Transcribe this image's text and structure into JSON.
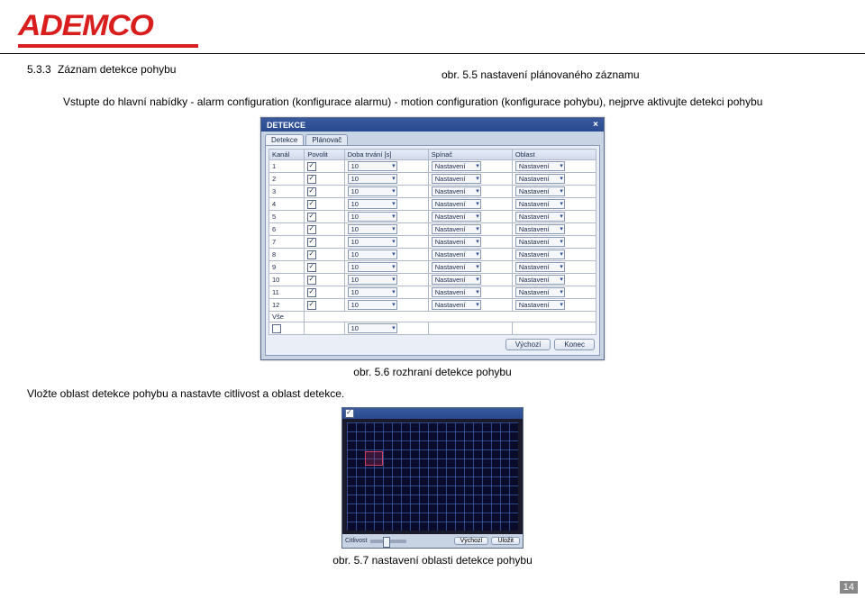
{
  "logo": "ADEMCO",
  "row1": {
    "section_num": "5.3.3",
    "section_title": "Záznam detekce pohybu",
    "caption55": "obr. 5.5 nastavení plánovaného záznamu"
  },
  "para1": "Vstupte do hlavní nabídky - alarm configuration (konfigurace alarmu) - motion configuration (konfigurace pohybu), nejprve aktivujte detekci pohybu",
  "detekce": {
    "title": "DETEKCE",
    "tabs": [
      "Detekce",
      "Plánovač"
    ],
    "columns": [
      "Kanál",
      "Povolit",
      "Doba trvání [s]",
      "Spínač",
      "Oblast"
    ],
    "rows": [
      {
        "k": "1",
        "p": true,
        "d": "10",
        "s": "Nastavení",
        "o": "Nastavení"
      },
      {
        "k": "2",
        "p": true,
        "d": "10",
        "s": "Nastavení",
        "o": "Nastavení"
      },
      {
        "k": "3",
        "p": true,
        "d": "10",
        "s": "Nastavení",
        "o": "Nastavení"
      },
      {
        "k": "4",
        "p": true,
        "d": "10",
        "s": "Nastavení",
        "o": "Nastavení"
      },
      {
        "k": "5",
        "p": true,
        "d": "10",
        "s": "Nastavení",
        "o": "Nastavení"
      },
      {
        "k": "6",
        "p": true,
        "d": "10",
        "s": "Nastavení",
        "o": "Nastavení"
      },
      {
        "k": "7",
        "p": true,
        "d": "10",
        "s": "Nastavení",
        "o": "Nastavení"
      },
      {
        "k": "8",
        "p": true,
        "d": "10",
        "s": "Nastavení",
        "o": "Nastavení"
      },
      {
        "k": "9",
        "p": true,
        "d": "10",
        "s": "Nastavení",
        "o": "Nastavení"
      },
      {
        "k": "10",
        "p": true,
        "d": "10",
        "s": "Nastavení",
        "o": "Nastavení"
      },
      {
        "k": "11",
        "p": true,
        "d": "10",
        "s": "Nastavení",
        "o": "Nastavení"
      },
      {
        "k": "12",
        "p": true,
        "d": "10",
        "s": "Nastavení",
        "o": "Nastavení"
      }
    ],
    "all_label": "Vše",
    "all_d": "10",
    "btn_default": "Výchozí",
    "btn_close": "Konec"
  },
  "caption56": "obr. 5.6 rozhraní detekce pohybu",
  "para2": "Vložte oblast detekce pohybu a nastavte citlivost a oblast detekce.",
  "area": {
    "slider_label": "Citlivost",
    "btn1": "Výchozí",
    "btn2": "Uložit"
  },
  "caption57": "obr. 5.7 nastavení oblasti detekce pohybu",
  "page_num": "14"
}
